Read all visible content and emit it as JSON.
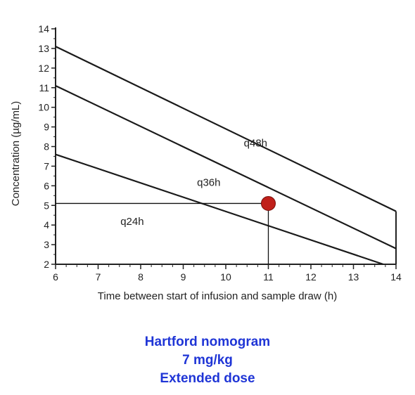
{
  "chart_data": {
    "type": "line",
    "xlabel": "Time between start of infusion and sample draw (h)",
    "ylabel": "Concentration (µg/mL)",
    "xlim": [
      6,
      14
    ],
    "ylim": [
      2,
      14
    ],
    "xticks": [
      "6",
      "7",
      "8",
      "9",
      "10",
      "11",
      "12",
      "13",
      "14"
    ],
    "yticks": [
      "2",
      "3",
      "4",
      "5",
      "6",
      "7",
      "8",
      "9",
      "10",
      "11",
      "12",
      "13",
      "14"
    ],
    "grid": false,
    "series": [
      {
        "x": [
          6,
          14
        ],
        "y": [
          13.1,
          4.7
        ]
      },
      {
        "x": [
          6,
          14
        ],
        "y": [
          11.1,
          2.8
        ]
      },
      {
        "x": [
          6,
          13.7
        ],
        "y": [
          7.6,
          2.0
        ]
      }
    ],
    "region_labels": [
      {
        "text": "q48h",
        "x": 10.7,
        "y": 8.0
      },
      {
        "text": "q36h",
        "x": 9.6,
        "y": 6.0
      },
      {
        "text": "q24h",
        "x": 7.8,
        "y": 4.0
      }
    ],
    "point": {
      "x": 11,
      "y": 5.1,
      "color": "#c0201a"
    }
  },
  "caption": {
    "line1": "Hartford nomogram",
    "line2": "7 mg/kg",
    "line3": "Extended dose"
  }
}
